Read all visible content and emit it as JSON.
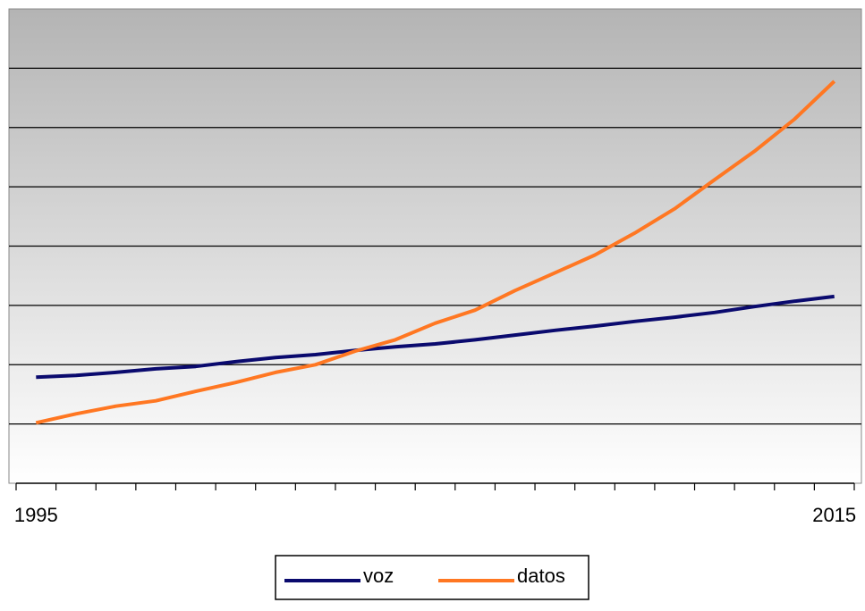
{
  "chart_data": {
    "type": "line",
    "categories": [
      "1995",
      null,
      null,
      null,
      null,
      null,
      null,
      null,
      null,
      null,
      null,
      null,
      null,
      null,
      null,
      null,
      null,
      null,
      null,
      null,
      "2015"
    ],
    "series": [
      {
        "name": "voz",
        "color": "#0a0a6e",
        "values": [
          1.79,
          1.82,
          1.87,
          1.93,
          1.97,
          2.05,
          2.12,
          2.17,
          2.24,
          2.3,
          2.35,
          2.42,
          2.5,
          2.58,
          2.65,
          2.73,
          2.8,
          2.88,
          2.98,
          3.07,
          3.15
        ]
      },
      {
        "name": "datos",
        "color": "#ff7722",
        "values": [
          1.02,
          1.17,
          1.3,
          1.39,
          1.55,
          1.7,
          1.87,
          2.0,
          2.23,
          2.42,
          2.7,
          2.92,
          3.25,
          3.55,
          3.85,
          4.22,
          4.63,
          5.12,
          5.6,
          6.14,
          6.78
        ]
      }
    ],
    "ylim": [
      0,
      8
    ],
    "ygrid": [
      1,
      2,
      3,
      4,
      5,
      6,
      7
    ],
    "legend": "bottom"
  }
}
